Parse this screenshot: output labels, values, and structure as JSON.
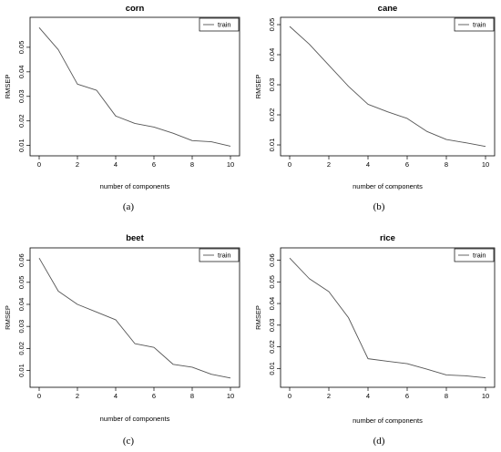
{
  "figure": {
    "captions": [
      "(a)",
      "(b)",
      "(c)",
      "(d)"
    ]
  },
  "chart_data": [
    {
      "type": "line",
      "title": "corn",
      "caption": "(a)",
      "xlabel": "number of components",
      "ylabel": "RMSEP",
      "x": [
        0,
        1,
        2,
        3,
        4,
        5,
        6,
        7,
        8,
        9,
        10
      ],
      "xticks": [
        0,
        2,
        4,
        6,
        8,
        10
      ],
      "xlim": [
        0,
        10
      ],
      "yticks": [
        0.01,
        0.02,
        0.03,
        0.04,
        0.05
      ],
      "ytick_labels": [
        "0.01",
        "0.02",
        "0.03",
        "0.04",
        "0.05"
      ],
      "ylim": [
        0.0095,
        0.0585
      ],
      "legend_position": "top-right",
      "series": [
        {
          "name": "train",
          "color": "#555555",
          "values": [
            0.058,
            0.049,
            0.035,
            0.0325,
            0.022,
            0.019,
            0.0175,
            0.015,
            0.012,
            0.0115,
            0.0097
          ]
        }
      ]
    },
    {
      "type": "line",
      "title": "cane",
      "caption": "(b)",
      "xlabel": "number of components",
      "ylabel": "RMSEP",
      "x": [
        0,
        1,
        2,
        3,
        4,
        5,
        6,
        7,
        8,
        9,
        10
      ],
      "xticks": [
        0,
        2,
        4,
        6,
        8,
        10
      ],
      "xlim": [
        0,
        10
      ],
      "yticks": [
        0.01,
        0.02,
        0.03,
        0.04,
        0.05
      ],
      "ytick_labels": [
        "0.01",
        "0.02",
        "0.03",
        "0.04",
        "0.05"
      ],
      "ylim": [
        0.0094,
        0.0494
      ],
      "legend_position": "top-right",
      "series": [
        {
          "name": "train",
          "color": "#555555",
          "values": [
            0.0494,
            0.0435,
            0.0365,
            0.0295,
            0.0235,
            0.021,
            0.0188,
            0.0145,
            0.0118,
            0.0107,
            0.0095
          ]
        }
      ]
    },
    {
      "type": "line",
      "title": "beet",
      "caption": "(c)",
      "xlabel": "number of components",
      "ylabel": "RMSEP",
      "x": [
        0,
        1,
        2,
        3,
        4,
        5,
        6,
        7,
        8,
        9,
        10
      ],
      "xticks": [
        0,
        2,
        4,
        6,
        8,
        10
      ],
      "xlim": [
        0,
        10
      ],
      "yticks": [
        0.01,
        0.02,
        0.03,
        0.04,
        0.05,
        0.06
      ],
      "ytick_labels": [
        "0.01",
        "0.02",
        "0.03",
        "0.04",
        "0.05",
        "0.06"
      ],
      "ylim": [
        0.0065,
        0.0615
      ],
      "legend_position": "top-right",
      "series": [
        {
          "name": "train",
          "color": "#555555",
          "values": [
            0.061,
            0.046,
            0.04,
            0.0365,
            0.033,
            0.0222,
            0.0205,
            0.0128,
            0.0115,
            0.0083,
            0.0066
          ]
        }
      ]
    },
    {
      "type": "line",
      "title": "rice",
      "caption": "(d)",
      "xlabel": "number of components",
      "ylabel": "RMSEP",
      "x": [
        0,
        1,
        2,
        3,
        4,
        5,
        6,
        7,
        8,
        9,
        10
      ],
      "xticks": [
        0,
        2,
        4,
        6,
        8,
        10
      ],
      "xlim": [
        0,
        10
      ],
      "yticks": [
        0.01,
        0.02,
        0.03,
        0.04,
        0.05,
        0.06
      ],
      "ytick_labels": [
        "0.01",
        "0.02",
        "0.03",
        "0.04",
        "0.05",
        "0.06"
      ],
      "ylim": [
        0.0055,
        0.0615
      ],
      "legend_position": "top-right",
      "series": [
        {
          "name": "train",
          "color": "#555555",
          "values": [
            0.061,
            0.0515,
            0.0455,
            0.0335,
            0.0145,
            0.0133,
            0.0122,
            0.0097,
            0.007,
            0.0066,
            0.0057
          ]
        }
      ]
    }
  ]
}
